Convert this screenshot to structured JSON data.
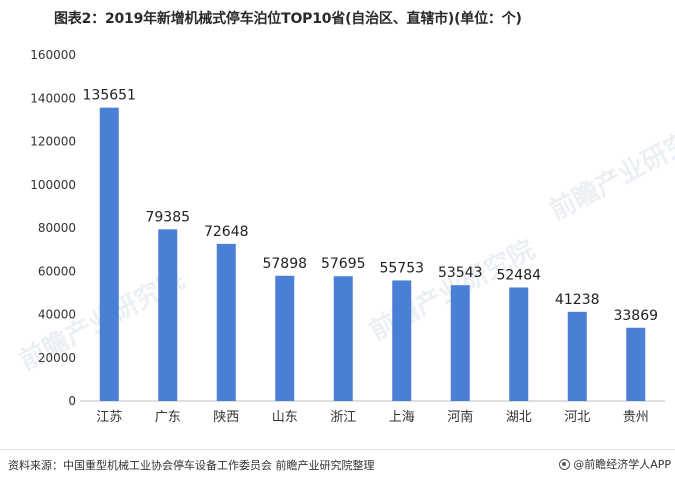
{
  "title": "图表2：2019年新增机械式停车泊位TOP10省(自治区、直辖市)(单位：个)",
  "chart_data": {
    "type": "bar",
    "categories": [
      "江苏",
      "广东",
      "陕西",
      "山东",
      "浙江",
      "上海",
      "河南",
      "湖北",
      "河北",
      "贵州"
    ],
    "values": [
      135651,
      79385,
      72648,
      57898,
      57695,
      55753,
      53543,
      52484,
      41238,
      33869
    ],
    "title": "图表2：2019年新增机械式停车泊位TOP10省(自治区、直辖市)(单位：个)",
    "xlabel": "",
    "ylabel": "",
    "ylim": [
      0,
      160000
    ],
    "yticks": [
      0,
      20000,
      40000,
      60000,
      80000,
      100000,
      120000,
      140000,
      160000
    ],
    "bar_color": "#4a7fd6",
    "grid": false,
    "legend": "none"
  },
  "footer": {
    "source": "资料来源：中国重型机械工业协会停车设备工作委员会 前瞻产业研究院整理",
    "brand": "@前瞻经济学人APP"
  },
  "watermark": {
    "text": "前瞻产业研究院"
  }
}
